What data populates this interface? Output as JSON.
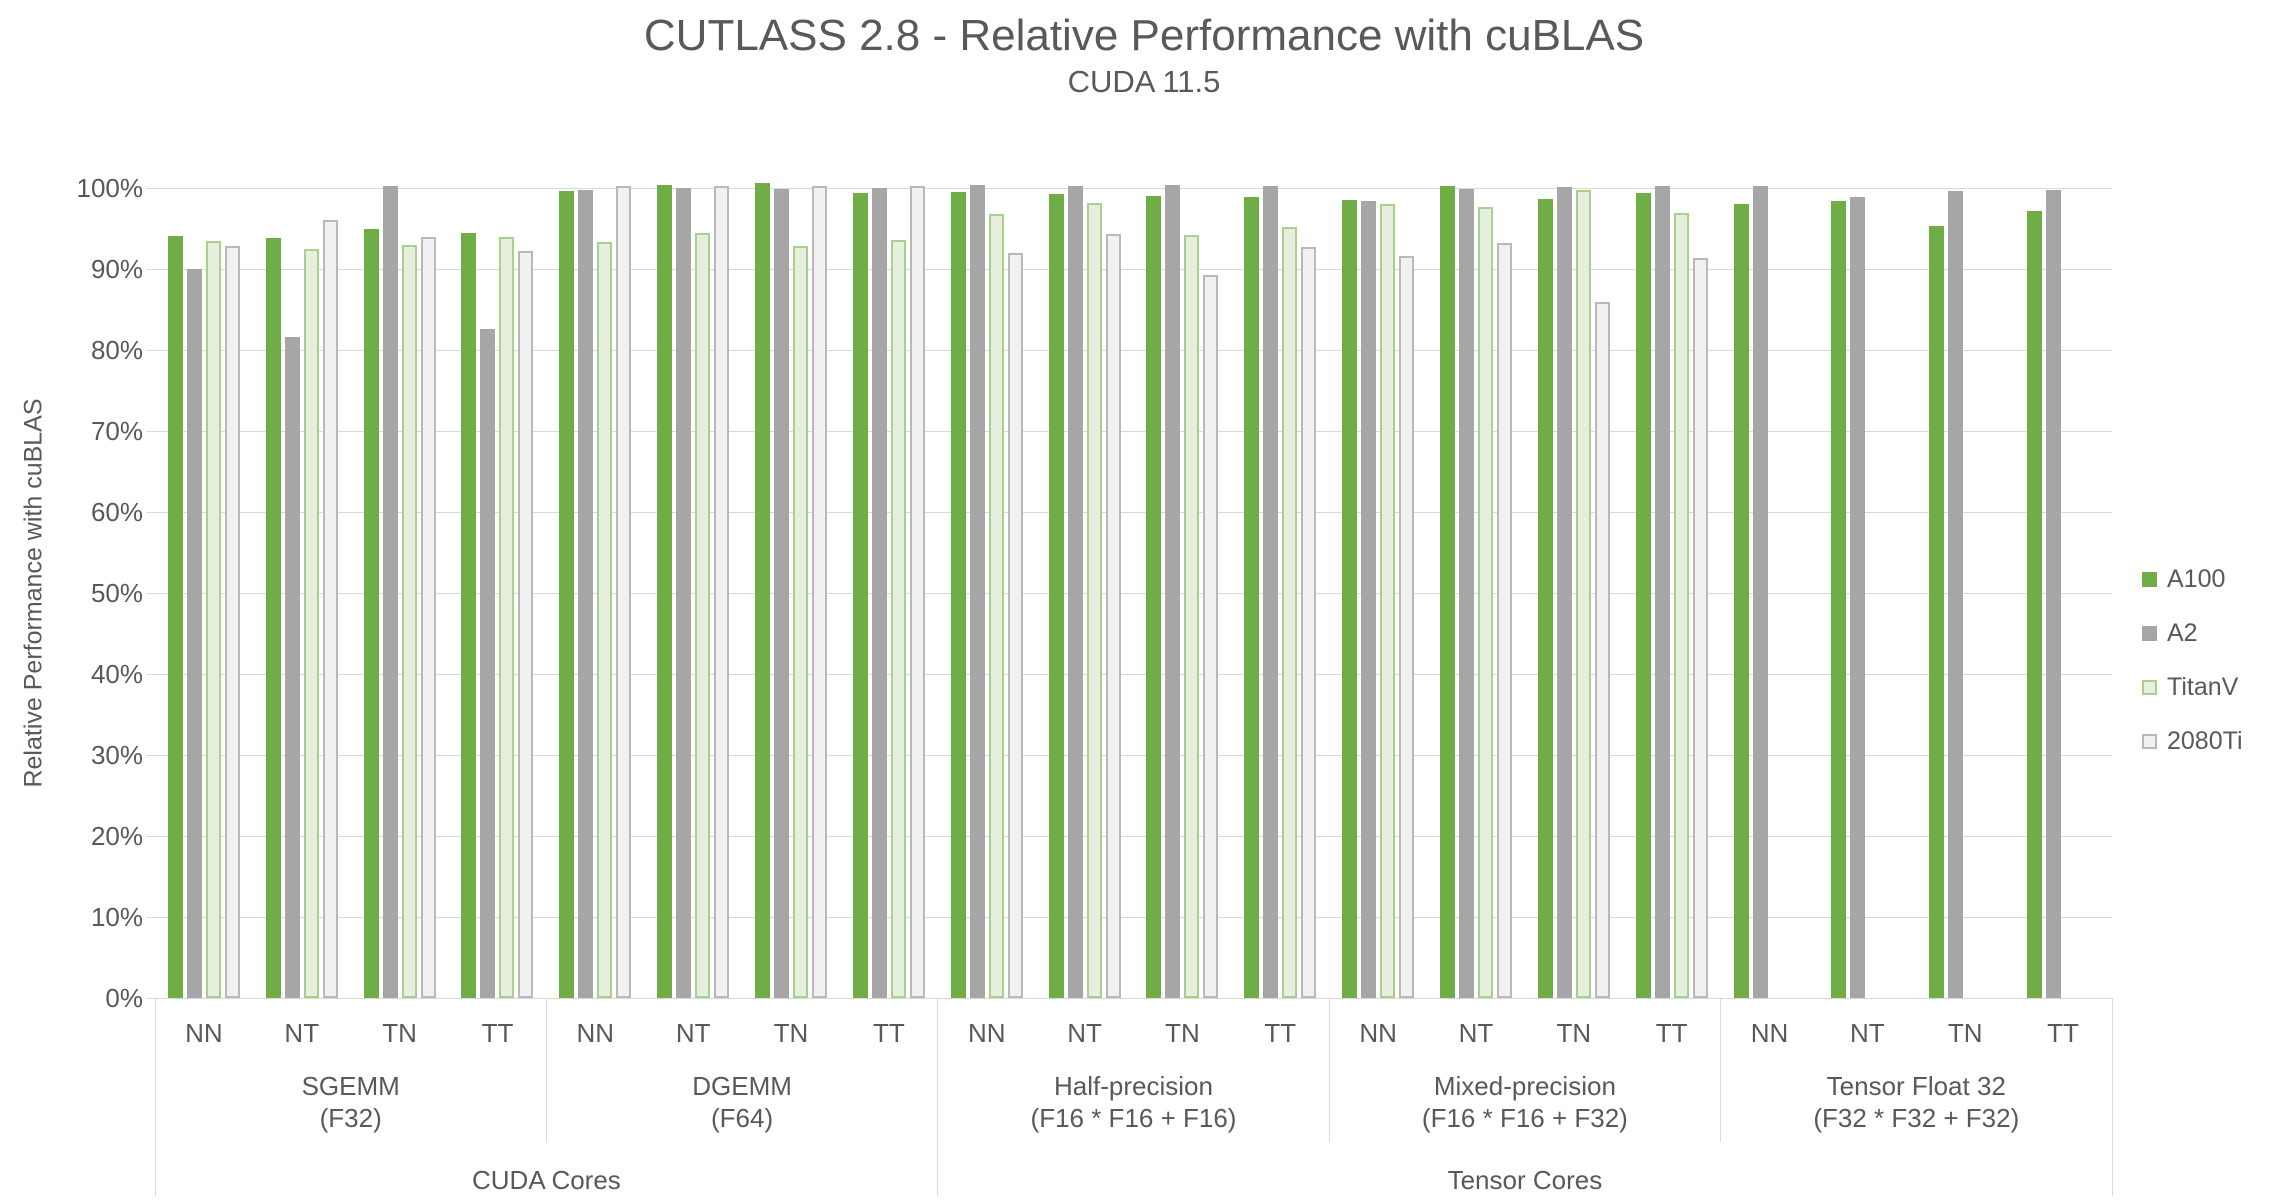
{
  "chart_data": {
    "type": "bar",
    "title": "CUTLASS 2.8 - Relative Performance with cuBLAS",
    "subtitle": "CUDA 11.5",
    "ylabel": "Relative Performance with cuBLAS",
    "ylim": [
      0,
      100
    ],
    "ytick_step": 10,
    "ytick_labels": [
      "0%",
      "10%",
      "20%",
      "30%",
      "40%",
      "50%",
      "60%",
      "70%",
      "80%",
      "90%",
      "100%"
    ],
    "grid": "horizontal",
    "legend_position": "right",
    "colors": {
      "gridline": "#d9d9d9",
      "axis_line": "#d9d9d9",
      "text": "#595959"
    },
    "series": [
      {
        "name": "A100",
        "fill": "#70ad47",
        "border": "#70ad47"
      },
      {
        "name": "A2",
        "fill": "#a6a6a6",
        "border": "#a6a6a6"
      },
      {
        "name": "TitanV",
        "fill": "#e6efdd",
        "border": "#a9d18e"
      },
      {
        "name": "2080Ti",
        "fill": "#f1f1f1",
        "border": "#b9b9b9"
      }
    ],
    "groups": [
      {
        "label": "SGEMM",
        "sublabel": "(F32)",
        "clusters": [
          {
            "label": "NN",
            "values": [
              94.1,
              90.0,
              93.5,
              92.9
            ]
          },
          {
            "label": "NT",
            "values": [
              93.8,
              81.6,
              92.5,
              96.1
            ]
          },
          {
            "label": "TN",
            "values": [
              95.0,
              100.3,
              93.0,
              93.9
            ]
          },
          {
            "label": "TT",
            "values": [
              94.5,
              82.6,
              93.9,
              92.2
            ]
          }
        ]
      },
      {
        "label": "DGEMM",
        "sublabel": "(F64)",
        "clusters": [
          {
            "label": "NN",
            "values": [
              99.6,
              99.8,
              93.3,
              100.3
            ]
          },
          {
            "label": "NT",
            "values": [
              100.4,
              100.0,
              94.5,
              100.2
            ]
          },
          {
            "label": "TN",
            "values": [
              100.6,
              99.9,
              92.9,
              100.3
            ]
          },
          {
            "label": "TT",
            "values": [
              99.4,
              100.0,
              93.6,
              100.2
            ]
          }
        ]
      },
      {
        "label": "Half-precision",
        "sublabel": "(F16 * F16 + F16)",
        "clusters": [
          {
            "label": "NN",
            "values": [
              99.5,
              100.4,
              96.8,
              92.0
            ]
          },
          {
            "label": "NT",
            "values": [
              99.3,
              100.2,
              98.2,
              94.3
            ]
          },
          {
            "label": "TN",
            "values": [
              99.0,
              100.4,
              94.2,
              89.3
            ]
          },
          {
            "label": "TT",
            "values": [
              98.9,
              100.2,
              95.2,
              92.7
            ]
          }
        ]
      },
      {
        "label": "Mixed-precision",
        "sublabel": "(F16 * F16 + F32)",
        "clusters": [
          {
            "label": "NN",
            "values": [
              98.5,
              98.4,
              98.0,
              91.6
            ]
          },
          {
            "label": "NT",
            "values": [
              100.2,
              99.9,
              97.7,
              93.2
            ]
          },
          {
            "label": "TN",
            "values": [
              98.6,
              100.1,
              99.8,
              85.9
            ]
          },
          {
            "label": "TT",
            "values": [
              99.4,
              100.3,
              96.9,
              91.3
            ]
          }
        ]
      },
      {
        "label": "Tensor Float 32",
        "sublabel": "(F32 * F32 + F32)",
        "clusters": [
          {
            "label": "NN",
            "values": [
              98.0,
              100.2,
              null,
              null
            ]
          },
          {
            "label": "NT",
            "values": [
              98.4,
              98.9,
              null,
              null
            ]
          },
          {
            "label": "TN",
            "values": [
              95.3,
              99.6,
              null,
              null
            ]
          },
          {
            "label": "TT",
            "values": [
              97.2,
              99.8,
              null,
              null
            ]
          }
        ]
      }
    ],
    "core_groups": [
      {
        "label": "CUDA Cores",
        "groups": [
          0,
          1
        ]
      },
      {
        "label": "Tensor Cores",
        "groups": [
          2,
          3,
          4
        ]
      }
    ]
  }
}
